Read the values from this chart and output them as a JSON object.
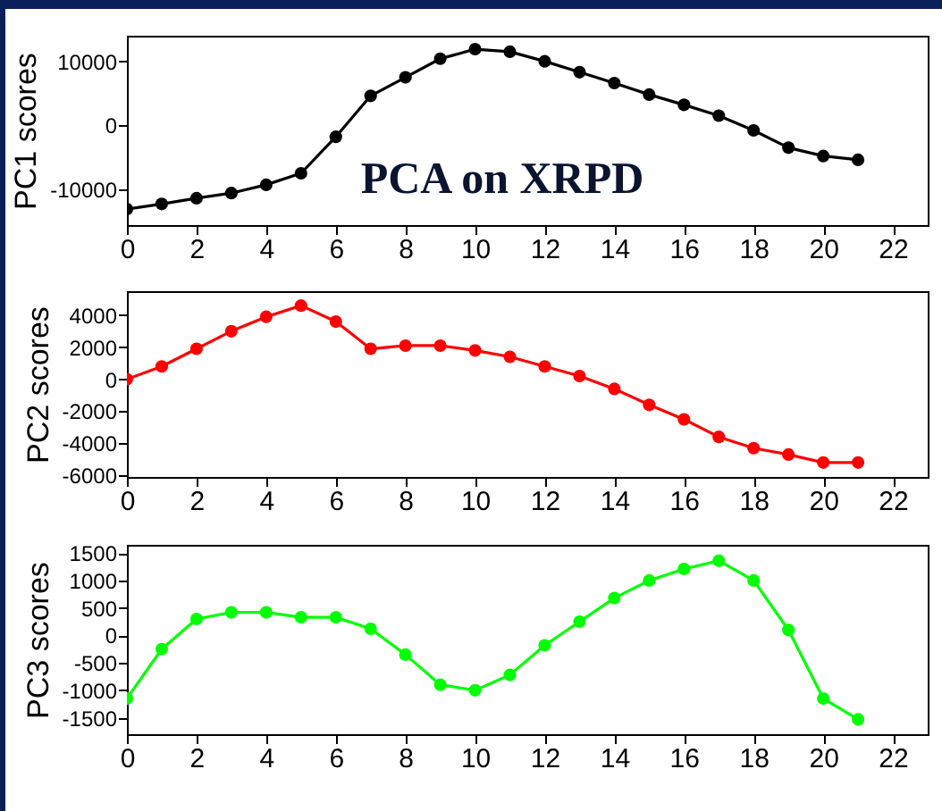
{
  "chart_data": [
    {
      "type": "line",
      "title": "PCA on XRPD",
      "ylabel": "PC1 scores",
      "x": [
        0,
        1,
        2,
        3,
        4,
        5,
        6,
        7,
        8,
        9,
        10,
        11,
        12,
        13,
        14,
        15,
        16,
        17,
        18,
        19,
        20,
        21
      ],
      "series": [
        {
          "color": "#000000",
          "values": [
            -13100,
            -12300,
            -11400,
            -10600,
            -9300,
            -7500,
            -1800,
            4600,
            7500,
            10400,
            11900,
            11500,
            10000,
            8300,
            6600,
            4800,
            3200,
            1500,
            -800,
            -3500,
            -4800,
            -5400
          ]
        }
      ],
      "xlim": [
        0,
        23
      ],
      "xticks": [
        0,
        2,
        4,
        6,
        8,
        10,
        12,
        14,
        16,
        18,
        20,
        22
      ],
      "ylim": [
        -15600,
        14000
      ],
      "yticks": [
        -10000,
        0,
        10000
      ],
      "marker": "circle",
      "grid": false,
      "legend": false
    },
    {
      "type": "line",
      "ylabel": "PC2 scores",
      "x": [
        0,
        1,
        2,
        3,
        4,
        5,
        6,
        7,
        8,
        9,
        10,
        11,
        12,
        13,
        14,
        15,
        16,
        17,
        18,
        19,
        20,
        21
      ],
      "series": [
        {
          "color": "#ff0000",
          "values": [
            0,
            800,
            1900,
            3000,
            3900,
            4600,
            3600,
            1900,
            2100,
            2100,
            1800,
            1400,
            800,
            200,
            -600,
            -1600,
            -2500,
            -3600,
            -4300,
            -4700,
            -5200,
            -5200
          ]
        }
      ],
      "xlim": [
        0,
        23
      ],
      "xticks": [
        0,
        2,
        4,
        6,
        8,
        10,
        12,
        14,
        16,
        18,
        20,
        22
      ],
      "ylim": [
        -6100,
        5500
      ],
      "yticks": [
        -6000,
        -4000,
        -2000,
        0,
        2000,
        4000
      ],
      "marker": "circle",
      "grid": false,
      "legend": false
    },
    {
      "type": "line",
      "ylabel": "PC3 scores",
      "x": [
        0,
        1,
        2,
        3,
        4,
        5,
        6,
        7,
        8,
        9,
        10,
        11,
        12,
        13,
        14,
        15,
        16,
        17,
        18,
        19,
        20,
        21
      ],
      "series": [
        {
          "color": "#00ff00",
          "values": [
            -1150,
            -250,
            300,
            420,
            420,
            330,
            330,
            120,
            -350,
            -900,
            -1000,
            -720,
            -180,
            250,
            680,
            1000,
            1210,
            1360,
            1000,
            100,
            -1150,
            -1530
          ]
        }
      ],
      "xlim": [
        0,
        23
      ],
      "xticks": [
        0,
        2,
        4,
        6,
        8,
        10,
        12,
        14,
        16,
        18,
        20,
        22
      ],
      "ylim": [
        -1800,
        1650
      ],
      "yticks": [
        -1500,
        -1000,
        -500,
        0,
        500,
        1000,
        1500
      ],
      "marker": "circle",
      "grid": false,
      "legend": false
    }
  ]
}
